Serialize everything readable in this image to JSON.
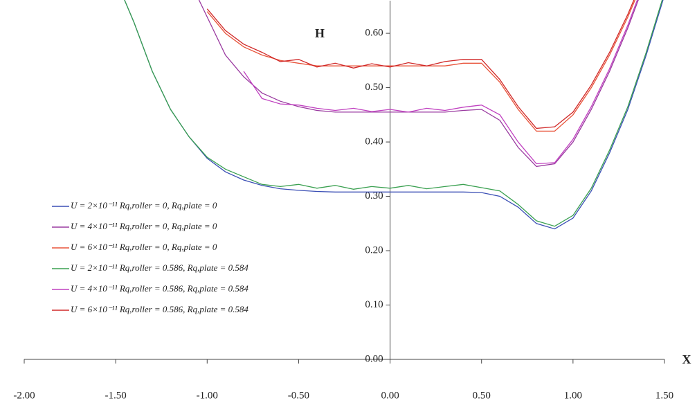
{
  "chart_data": {
    "type": "line",
    "x_label": "X",
    "y_label": "H",
    "xlim": [
      -2,
      1.5
    ],
    "ylim": [
      0,
      0.66
    ],
    "xticks": [
      {
        "value": -2,
        "label": "-2.00"
      },
      {
        "value": -1.5,
        "label": "-1.50"
      },
      {
        "value": -1,
        "label": "-1.00"
      },
      {
        "value": -0.5,
        "label": "-0.50"
      },
      {
        "value": 0,
        "label": "0.00"
      },
      {
        "value": 0.5,
        "label": "0.50"
      },
      {
        "value": 1,
        "label": "1.00"
      },
      {
        "value": 1.5,
        "label": "1.50"
      }
    ],
    "yticks": [
      {
        "value": 0,
        "label": "0.00"
      },
      {
        "value": 0.1,
        "label": "0.10"
      },
      {
        "value": 0.2,
        "label": "0.20"
      },
      {
        "value": 0.3,
        "label": "0.30"
      },
      {
        "value": 0.4,
        "label": "0.40"
      },
      {
        "value": 0.5,
        "label": "0.50"
      },
      {
        "value": 0.6,
        "label": "0.60"
      }
    ],
    "x": [
      -1.5,
      -1.4,
      -1.3,
      -1.2,
      -1.1,
      -1.0,
      -0.9,
      -0.8,
      -0.7,
      -0.6,
      -0.5,
      -0.4,
      -0.3,
      -0.2,
      -0.1,
      0,
      0.1,
      0.2,
      0.3,
      0.4,
      0.5,
      0.6,
      0.7,
      0.8,
      0.9,
      1.0,
      1.1,
      1.2,
      1.3,
      1.4,
      1.5
    ],
    "series": [
      {
        "name": "U = 2×10⁻¹¹  Rq,roller = 0, Rq,plate = 0",
        "color": "#3b4fb5",
        "values": [
          0.7,
          0.62,
          0.53,
          0.46,
          0.41,
          0.37,
          0.345,
          0.33,
          0.32,
          0.314,
          0.311,
          0.309,
          0.308,
          0.308,
          0.308,
          0.308,
          0.308,
          0.308,
          0.308,
          0.308,
          0.307,
          0.3,
          0.28,
          0.25,
          0.24,
          0.26,
          0.31,
          0.38,
          0.46,
          0.56,
          0.67
        ]
      },
      {
        "name": "U = 4×10⁻¹¹  Rq,roller = 0, Rq,plate = 0",
        "color": "#9a3aa0",
        "values": [
          null,
          null,
          null,
          null,
          0.7,
          0.63,
          0.56,
          0.52,
          0.49,
          0.475,
          0.465,
          0.458,
          0.455,
          0.455,
          0.455,
          0.455,
          0.455,
          0.455,
          0.455,
          0.458,
          0.46,
          0.44,
          0.39,
          0.355,
          0.36,
          0.4,
          0.46,
          0.53,
          0.61,
          0.7,
          null
        ]
      },
      {
        "name": "U = 6×10⁻¹¹  Rq,roller = 0, Rq,plate = 0",
        "color": "#e8533a",
        "values": [
          null,
          null,
          null,
          null,
          null,
          0.64,
          0.6,
          0.575,
          0.56,
          0.55,
          0.545,
          0.54,
          0.54,
          0.54,
          0.54,
          0.54,
          0.54,
          0.54,
          0.54,
          0.545,
          0.545,
          0.51,
          0.46,
          0.42,
          0.42,
          0.45,
          0.5,
          0.56,
          0.63,
          0.71,
          null
        ]
      },
      {
        "name": "U = 2×10⁻¹¹  Rq,roller = 0.586, Rq,plate = 0.584",
        "color": "#3aa050",
        "values": [
          0.7,
          0.62,
          0.53,
          0.46,
          0.41,
          0.372,
          0.35,
          0.336,
          0.322,
          0.318,
          0.322,
          0.315,
          0.32,
          0.313,
          0.318,
          0.315,
          0.32,
          0.314,
          0.318,
          0.322,
          0.316,
          0.31,
          0.285,
          0.255,
          0.245,
          0.265,
          0.315,
          0.385,
          0.465,
          0.565,
          0.675
        ]
      },
      {
        "name": "U = 4×10⁻¹¹  Rq,roller = 0.586, Rq,plate = 0.584",
        "color": "#c040c0",
        "values": [
          null,
          null,
          null,
          null,
          null,
          null,
          null,
          0.53,
          0.48,
          0.47,
          0.468,
          0.462,
          0.458,
          0.462,
          0.456,
          0.46,
          0.455,
          0.462,
          0.458,
          0.464,
          0.468,
          0.45,
          0.4,
          0.36,
          0.362,
          0.405,
          0.465,
          0.535,
          0.615,
          0.705,
          null
        ]
      },
      {
        "name": "U = 6×10⁻¹¹  Rq,roller = 0.586, Rq,plate = 0.584",
        "color": "#d02828",
        "values": [
          null,
          null,
          null,
          null,
          null,
          0.645,
          0.605,
          0.58,
          0.565,
          0.548,
          0.552,
          0.538,
          0.545,
          0.536,
          0.544,
          0.538,
          0.546,
          0.54,
          0.548,
          0.552,
          0.552,
          0.515,
          0.465,
          0.425,
          0.428,
          0.455,
          0.505,
          0.565,
          0.635,
          0.715,
          null
        ]
      }
    ]
  }
}
